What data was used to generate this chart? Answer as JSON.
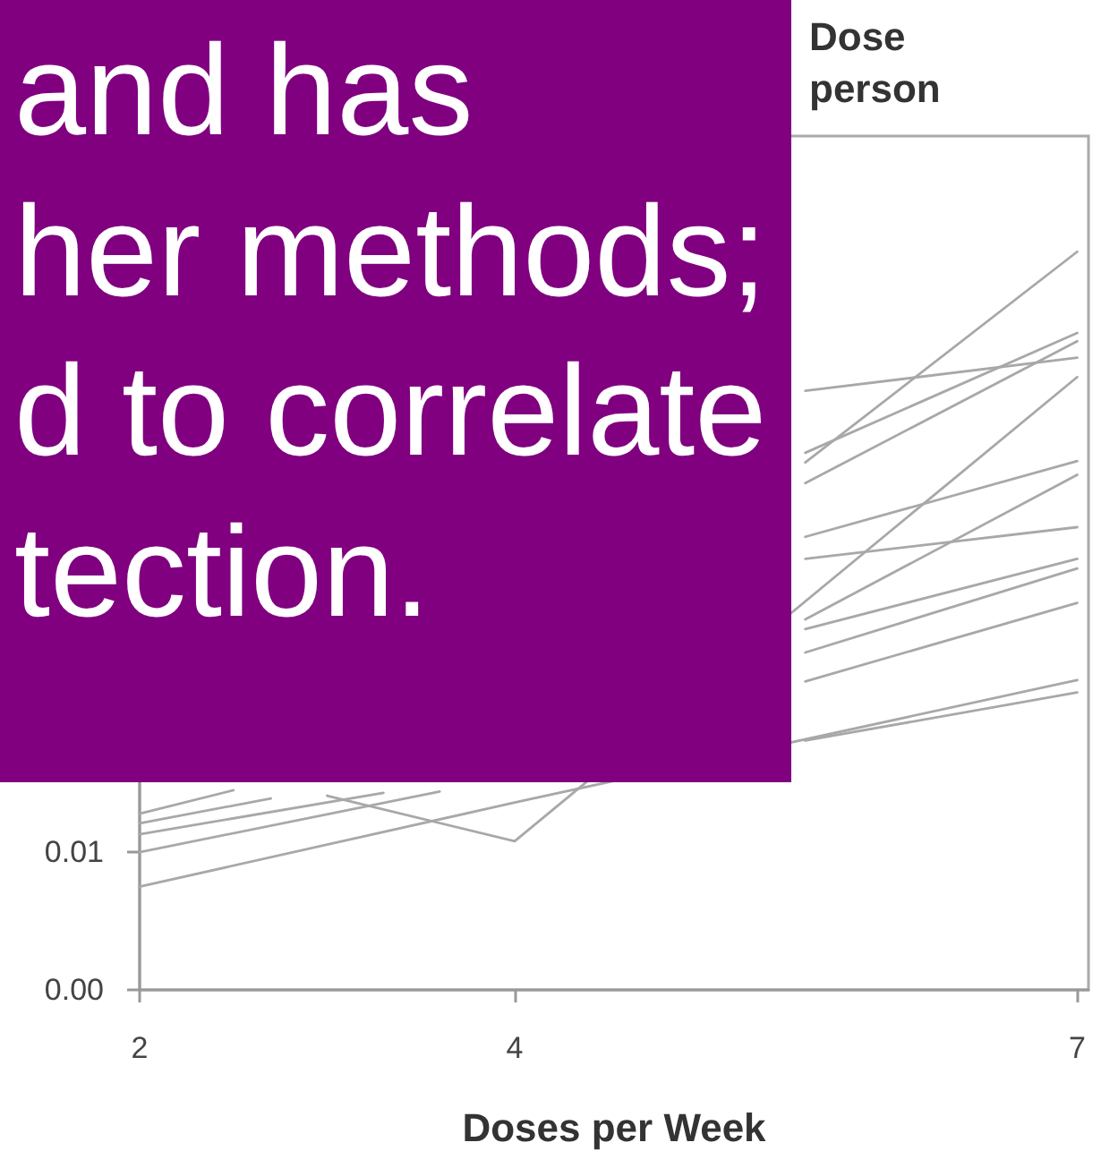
{
  "chart_data": {
    "type": "line",
    "title": "Dose person",
    "xlabel": "Doses per Week",
    "xlim": [
      2,
      7.06
    ],
    "xticks": [
      2,
      4,
      7
    ],
    "ylim": [
      0,
      0.062
    ],
    "yticks": [
      {
        "value": 0,
        "label": "0.00"
      },
      {
        "value": 0.01,
        "label": "0.01"
      }
    ],
    "marker": "none",
    "series": [
      {
        "color": "#a8a8a8",
        "x": [
          5.55,
          7
        ],
        "values": [
          0.0383,
          0.0536
        ]
      },
      {
        "color": "#a8a8a8",
        "x": [
          5.55,
          7
        ],
        "values": [
          0.039,
          0.0477
        ]
      },
      {
        "color": "#a8a8a8",
        "x": [
          5.55,
          7
        ],
        "values": [
          0.0368,
          0.0471
        ]
      },
      {
        "color": "#a8a8a8",
        "x": [
          5.55,
          7
        ],
        "values": [
          0.0435,
          0.0459
        ]
      },
      {
        "color": "#a8a8a8",
        "x": [
          3,
          4,
          7
        ],
        "values": [
          0.0141,
          0.0108,
          0.0445
        ]
      },
      {
        "color": "#a8a8a8",
        "x": [
          5.55,
          7
        ],
        "values": [
          0.0329,
          0.0384
        ]
      },
      {
        "color": "#a8a8a8",
        "x": [
          5.55,
          7
        ],
        "values": [
          0.0269,
          0.0374
        ]
      },
      {
        "color": "#a8a8a8",
        "x": [
          5.55,
          7
        ],
        "values": [
          0.0313,
          0.0336
        ]
      },
      {
        "color": "#a8a8a8",
        "x": [
          5.55,
          7
        ],
        "values": [
          0.0262,
          0.0313
        ]
      },
      {
        "color": "#a8a8a8",
        "x": [
          5.55,
          7
        ],
        "values": [
          0.0245,
          0.0306
        ]
      },
      {
        "color": "#a8a8a8",
        "x": [
          5.55,
          7
        ],
        "values": [
          0.0224,
          0.0281
        ]
      },
      {
        "color": "#a8a8a8",
        "x": [
          2,
          4,
          7
        ],
        "values": [
          0.0075,
          0.0136,
          0.0225
        ]
      },
      {
        "color": "#a8a8a8",
        "x": [
          5.55,
          7
        ],
        "values": [
          0.0181,
          0.0216
        ]
      },
      {
        "color": "#a8a8a8",
        "x": [
          2,
          2.5
        ],
        "values": [
          0.0128,
          0.0145
        ]
      },
      {
        "color": "#a8a8a8",
        "x": [
          2,
          2.7
        ],
        "values": [
          0.0121,
          0.0139
        ]
      },
      {
        "color": "#a8a8a8",
        "x": [
          2,
          3.3
        ],
        "values": [
          0.0113,
          0.0143
        ]
      },
      {
        "color": "#a8a8a8",
        "x": [
          2,
          3.6
        ],
        "values": [
          0.01,
          0.0144
        ]
      }
    ],
    "annotations": [
      "and has",
      "her methods;",
      "d to correlate",
      "tection."
    ]
  }
}
